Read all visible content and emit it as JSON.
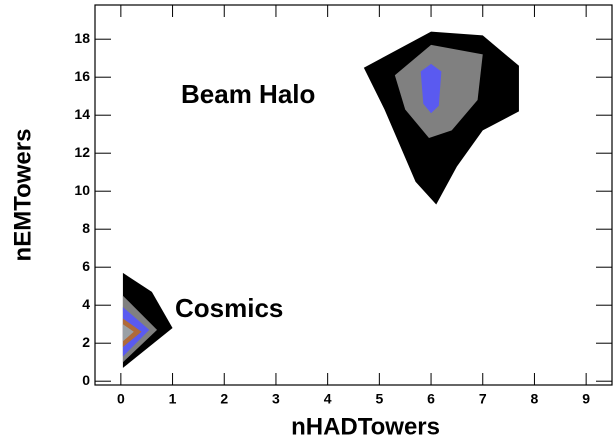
{
  "chart_data": {
    "type": "contour",
    "x_label": "nHADTowers",
    "y_label": "nEMTowers",
    "xlim": [
      -0.5,
      9.5
    ],
    "ylim": [
      -0.2,
      19.8
    ],
    "xticks": [
      0,
      1,
      2,
      3,
      4,
      5,
      6,
      7,
      8,
      9
    ],
    "yticks": [
      0,
      2,
      4,
      6,
      8,
      10,
      12,
      14,
      16,
      18
    ],
    "annotations": [
      "Beam Halo",
      "Cosmics"
    ],
    "contours": [
      {
        "color": "#000000",
        "x": [
          4.7,
          6,
          7,
          7.7,
          7.7,
          7,
          6.5,
          6.1,
          5.7,
          5.1
        ],
        "y": [
          16.5,
          18.4,
          18.2,
          16.6,
          14.2,
          13.2,
          11.3,
          9.3,
          10.5,
          14.3
        ]
      },
      {
        "color": "#808080",
        "x": [
          5.3,
          6,
          7,
          6.9,
          6.4,
          5.96,
          5.5
        ],
        "y": [
          16.1,
          17.7,
          17.2,
          14.8,
          13.2,
          12.8,
          14.3
        ]
      },
      {
        "color": "#5a5af0",
        "x": [
          6,
          6.2,
          6.15,
          6,
          5.85,
          5.8
        ],
        "y": [
          16.7,
          16.3,
          14.5,
          14.1,
          14.6,
          16.3
        ]
      },
      {
        "color": "#000000",
        "x": [
          0.04,
          0.6,
          1.0,
          0.04
        ],
        "y": [
          5.7,
          4.7,
          2.8,
          0.7
        ]
      },
      {
        "color": "#808080",
        "x": [
          0.04,
          0.7,
          0.04
        ],
        "y": [
          4.5,
          2.7,
          1.0
        ]
      },
      {
        "color": "#5a5af0",
        "x": [
          0.04,
          0.55,
          0.04
        ],
        "y": [
          3.9,
          2.7,
          1.3
        ]
      },
      {
        "color": "#b06a3a",
        "x": [
          0.04,
          0.4,
          0.04
        ],
        "y": [
          3.3,
          2.6,
          1.8
        ]
      },
      {
        "color": "#9aa0a6",
        "x": [
          0.04,
          0.25,
          0.04
        ],
        "y": [
          3.0,
          2.6,
          2.1
        ]
      }
    ]
  }
}
